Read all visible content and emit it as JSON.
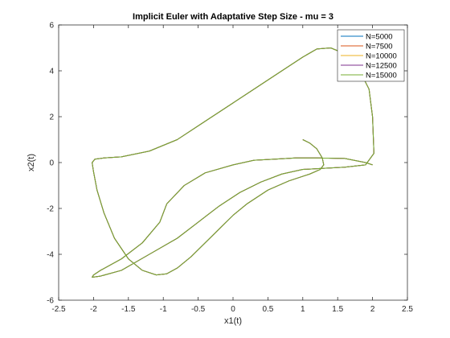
{
  "chart_data": {
    "type": "line",
    "title": "Implicit Euler with Adaptative Step Size - mu = 3",
    "xlabel": "x1(t)",
    "ylabel": "x2(t)",
    "xlim": [
      -2.5,
      2.5
    ],
    "ylim": [
      -6,
      6
    ],
    "xticks": [
      -2.5,
      -2,
      -1.5,
      -1,
      -0.5,
      0,
      0.5,
      1,
      1.5,
      2,
      2.5
    ],
    "xtick_labels": [
      "-2.5",
      "-2",
      "-1.5",
      "-1",
      "-0.5",
      "0",
      "0.5",
      "1",
      "1.5",
      "2",
      "2.5"
    ],
    "yticks": [
      -6,
      -4,
      -2,
      0,
      2,
      4,
      6
    ],
    "ytick_labels": [
      "-6",
      "-4",
      "-2",
      "0",
      "2",
      "4",
      "6"
    ],
    "grid": false,
    "legend_position": "top-right",
    "series": [
      {
        "name": "N=5000",
        "color": "#0072bd",
        "x": [
          1.0,
          1.1,
          1.2,
          1.28,
          1.3,
          1.25,
          1.1,
          0.8,
          0.5,
          0.2,
          0.0,
          -0.2,
          -0.4,
          -0.6,
          -0.8,
          -0.95,
          -1.1,
          -1.3,
          -1.5,
          -1.7,
          -1.85,
          -1.95,
          -2.0,
          -2.02,
          -1.98,
          -1.85,
          -1.6,
          -1.2,
          -0.8,
          -0.4,
          0.0,
          0.3,
          0.6,
          0.8,
          1.0,
          1.2,
          1.4,
          1.6,
          1.75,
          1.85,
          1.95,
          2.0,
          2.02,
          1.9,
          1.6,
          1.3,
          1.0,
          0.7,
          0.4,
          0.1,
          -0.2,
          -0.5,
          -0.8,
          -1.2,
          -1.6,
          -1.9,
          -2.02,
          -2.0,
          -1.9,
          -1.6,
          -1.3,
          -1.05,
          -0.95,
          -0.7,
          -0.4,
          0.0,
          0.3,
          0.6,
          0.9,
          1.2,
          1.6,
          1.9,
          2.0
        ],
        "y": [
          1.0,
          0.85,
          0.6,
          0.2,
          -0.1,
          -0.3,
          -0.5,
          -0.8,
          -1.2,
          -1.8,
          -2.3,
          -2.9,
          -3.5,
          -4.1,
          -4.6,
          -4.85,
          -4.9,
          -4.7,
          -4.2,
          -3.3,
          -2.2,
          -1.2,
          -0.4,
          0.0,
          0.15,
          0.2,
          0.25,
          0.5,
          1.0,
          1.8,
          2.6,
          3.2,
          3.8,
          4.2,
          4.6,
          4.95,
          5.0,
          4.75,
          4.3,
          3.8,
          3.2,
          2.0,
          0.4,
          -0.1,
          -0.2,
          -0.25,
          -0.3,
          -0.5,
          -0.85,
          -1.3,
          -1.9,
          -2.6,
          -3.3,
          -4.0,
          -4.7,
          -4.95,
          -5.0,
          -4.9,
          -4.7,
          -4.2,
          -3.5,
          -2.6,
          -1.8,
          -1.0,
          -0.45,
          -0.1,
          0.1,
          0.15,
          0.2,
          0.2,
          0.18,
          0.0,
          -0.1
        ]
      },
      {
        "name": "N=7500",
        "color": "#d95319",
        "x": [
          1.0,
          1.1,
          1.2,
          1.28,
          1.3,
          1.25,
          1.1,
          0.8,
          0.5,
          0.2,
          0.0,
          -0.2,
          -0.4,
          -0.6,
          -0.8,
          -0.95,
          -1.1,
          -1.3,
          -1.5,
          -1.7,
          -1.85,
          -1.95,
          -2.0,
          -2.02,
          -1.98,
          -1.85,
          -1.6,
          -1.2,
          -0.8,
          -0.4,
          0.0,
          0.3,
          0.6,
          0.8,
          1.0,
          1.2,
          1.4,
          1.6,
          1.75,
          1.85,
          1.95,
          2.0,
          2.02,
          1.9,
          1.6,
          1.3,
          1.0,
          0.7,
          0.4,
          0.1,
          -0.2,
          -0.5,
          -0.8,
          -1.2,
          -1.6,
          -1.9,
          -2.02,
          -2.0,
          -1.9,
          -1.6,
          -1.3,
          -1.05,
          -0.95,
          -0.7,
          -0.4,
          0.0,
          0.3,
          0.6,
          0.9,
          1.2,
          1.6,
          1.9,
          2.0
        ],
        "y": [
          1.0,
          0.85,
          0.6,
          0.2,
          -0.1,
          -0.3,
          -0.5,
          -0.8,
          -1.2,
          -1.8,
          -2.3,
          -2.9,
          -3.5,
          -4.1,
          -4.6,
          -4.85,
          -4.9,
          -4.7,
          -4.2,
          -3.3,
          -2.2,
          -1.2,
          -0.4,
          0.0,
          0.15,
          0.2,
          0.25,
          0.5,
          1.0,
          1.8,
          2.6,
          3.2,
          3.8,
          4.2,
          4.6,
          4.95,
          5.0,
          4.75,
          4.3,
          3.8,
          3.2,
          2.0,
          0.4,
          -0.1,
          -0.2,
          -0.25,
          -0.3,
          -0.5,
          -0.85,
          -1.3,
          -1.9,
          -2.6,
          -3.3,
          -4.0,
          -4.7,
          -4.95,
          -5.0,
          -4.9,
          -4.7,
          -4.2,
          -3.5,
          -2.6,
          -1.8,
          -1.0,
          -0.45,
          -0.1,
          0.1,
          0.15,
          0.2,
          0.2,
          0.18,
          0.0,
          -0.1
        ]
      },
      {
        "name": "N=10000",
        "color": "#edb120",
        "x": [
          1.0,
          1.1,
          1.2,
          1.28,
          1.3,
          1.25,
          1.1,
          0.8,
          0.5,
          0.2,
          0.0,
          -0.2,
          -0.4,
          -0.6,
          -0.8,
          -0.95,
          -1.1,
          -1.3,
          -1.5,
          -1.7,
          -1.85,
          -1.95,
          -2.0,
          -2.02,
          -1.98,
          -1.85,
          -1.6,
          -1.2,
          -0.8,
          -0.4,
          0.0,
          0.3,
          0.6,
          0.8,
          1.0,
          1.2,
          1.4,
          1.6,
          1.75,
          1.85,
          1.95,
          2.0,
          2.02,
          1.9,
          1.6,
          1.3,
          1.0,
          0.7,
          0.4,
          0.1,
          -0.2,
          -0.5,
          -0.8,
          -1.2,
          -1.6,
          -1.9,
          -2.02,
          -2.0,
          -1.9,
          -1.6,
          -1.3,
          -1.05,
          -0.95,
          -0.7,
          -0.4,
          0.0,
          0.3,
          0.6,
          0.9,
          1.2,
          1.6,
          1.9,
          2.0
        ],
        "y": [
          1.0,
          0.85,
          0.6,
          0.2,
          -0.1,
          -0.3,
          -0.5,
          -0.8,
          -1.2,
          -1.8,
          -2.3,
          -2.9,
          -3.5,
          -4.1,
          -4.6,
          -4.85,
          -4.9,
          -4.7,
          -4.2,
          -3.3,
          -2.2,
          -1.2,
          -0.4,
          0.0,
          0.15,
          0.2,
          0.25,
          0.5,
          1.0,
          1.8,
          2.6,
          3.2,
          3.8,
          4.2,
          4.6,
          4.95,
          5.0,
          4.75,
          4.3,
          3.8,
          3.2,
          2.0,
          0.4,
          -0.1,
          -0.2,
          -0.25,
          -0.3,
          -0.5,
          -0.85,
          -1.3,
          -1.9,
          -2.6,
          -3.3,
          -4.0,
          -4.7,
          -4.95,
          -5.0,
          -4.9,
          -4.7,
          -4.2,
          -3.5,
          -2.6,
          -1.8,
          -1.0,
          -0.45,
          -0.1,
          0.1,
          0.15,
          0.2,
          0.2,
          0.18,
          0.0,
          -0.1
        ]
      },
      {
        "name": "N=12500",
        "color": "#7e2f8e",
        "x": [
          1.0,
          1.1,
          1.2,
          1.28,
          1.3,
          1.25,
          1.1,
          0.8,
          0.5,
          0.2,
          0.0,
          -0.2,
          -0.4,
          -0.6,
          -0.8,
          -0.95,
          -1.1,
          -1.3,
          -1.5,
          -1.7,
          -1.85,
          -1.95,
          -2.0,
          -2.02,
          -1.98,
          -1.85,
          -1.6,
          -1.2,
          -0.8,
          -0.4,
          0.0,
          0.3,
          0.6,
          0.8,
          1.0,
          1.2,
          1.4,
          1.6,
          1.75,
          1.85,
          1.95,
          2.0,
          2.02,
          1.9,
          1.6,
          1.3,
          1.0,
          0.7,
          0.4,
          0.1,
          -0.2,
          -0.5,
          -0.8,
          -1.2,
          -1.6,
          -1.9,
          -2.02,
          -2.0,
          -1.9,
          -1.6,
          -1.3,
          -1.05,
          -0.95,
          -0.7,
          -0.4,
          0.0,
          0.3,
          0.6,
          0.9,
          1.2,
          1.6,
          1.9,
          2.0
        ],
        "y": [
          1.0,
          0.85,
          0.6,
          0.2,
          -0.1,
          -0.3,
          -0.5,
          -0.8,
          -1.2,
          -1.8,
          -2.3,
          -2.9,
          -3.5,
          -4.1,
          -4.6,
          -4.85,
          -4.9,
          -4.7,
          -4.2,
          -3.3,
          -2.2,
          -1.2,
          -0.4,
          0.0,
          0.15,
          0.2,
          0.25,
          0.5,
          1.0,
          1.8,
          2.6,
          3.2,
          3.8,
          4.2,
          4.6,
          4.95,
          5.0,
          4.75,
          4.3,
          3.8,
          3.2,
          2.0,
          0.4,
          -0.1,
          -0.2,
          -0.25,
          -0.3,
          -0.5,
          -0.85,
          -1.3,
          -1.9,
          -2.6,
          -3.3,
          -4.0,
          -4.7,
          -4.95,
          -5.0,
          -4.9,
          -4.7,
          -4.2,
          -3.5,
          -2.6,
          -1.8,
          -1.0,
          -0.45,
          -0.1,
          0.1,
          0.15,
          0.2,
          0.2,
          0.18,
          0.0,
          -0.1
        ]
      },
      {
        "name": "N=15000",
        "color": "#77ac30",
        "x": [
          1.0,
          1.1,
          1.2,
          1.28,
          1.3,
          1.25,
          1.1,
          0.8,
          0.5,
          0.2,
          0.0,
          -0.2,
          -0.4,
          -0.6,
          -0.8,
          -0.95,
          -1.1,
          -1.3,
          -1.5,
          -1.7,
          -1.85,
          -1.95,
          -2.0,
          -2.02,
          -1.98,
          -1.85,
          -1.6,
          -1.2,
          -0.8,
          -0.4,
          0.0,
          0.3,
          0.6,
          0.8,
          1.0,
          1.2,
          1.4,
          1.6,
          1.75,
          1.85,
          1.95,
          2.0,
          2.02,
          1.9,
          1.6,
          1.3,
          1.0,
          0.7,
          0.4,
          0.1,
          -0.2,
          -0.5,
          -0.8,
          -1.2,
          -1.6,
          -1.9,
          -2.02,
          -2.0,
          -1.9,
          -1.6,
          -1.3,
          -1.05,
          -0.95,
          -0.7,
          -0.4,
          0.0,
          0.3,
          0.6,
          0.9,
          1.2,
          1.6,
          1.9,
          2.0
        ],
        "y": [
          1.0,
          0.85,
          0.6,
          0.2,
          -0.1,
          -0.3,
          -0.5,
          -0.8,
          -1.2,
          -1.8,
          -2.3,
          -2.9,
          -3.5,
          -4.1,
          -4.6,
          -4.85,
          -4.9,
          -4.7,
          -4.2,
          -3.3,
          -2.2,
          -1.2,
          -0.4,
          0.0,
          0.15,
          0.2,
          0.25,
          0.5,
          1.0,
          1.8,
          2.6,
          3.2,
          3.8,
          4.2,
          4.6,
          4.95,
          5.0,
          4.75,
          4.3,
          3.8,
          3.2,
          2.0,
          0.4,
          -0.1,
          -0.2,
          -0.25,
          -0.3,
          -0.5,
          -0.85,
          -1.3,
          -1.9,
          -2.6,
          -3.3,
          -4.0,
          -4.7,
          -4.95,
          -5.0,
          -4.9,
          -4.7,
          -4.2,
          -3.5,
          -2.6,
          -1.8,
          -1.0,
          -0.45,
          -0.1,
          0.1,
          0.15,
          0.2,
          0.2,
          0.18,
          0.0,
          -0.1
        ]
      }
    ]
  }
}
